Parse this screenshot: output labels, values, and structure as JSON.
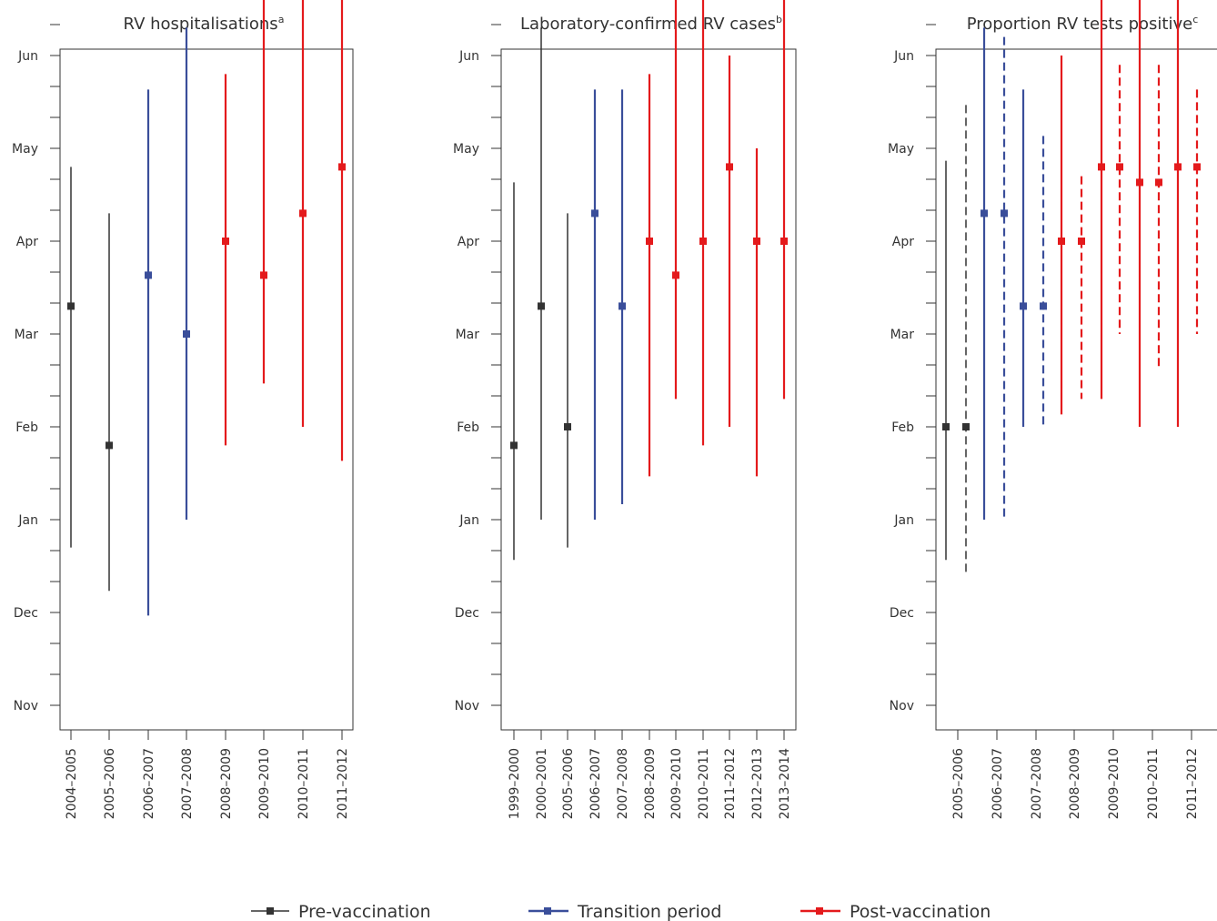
{
  "chart_data": [
    {
      "type": "range",
      "title": "RV hospitalisations",
      "title_superscript": "a",
      "y_tick_labels": [
        "Jun",
        "May",
        "Apr",
        "Mar",
        "Feb",
        "Jan",
        "Dec",
        "Nov"
      ],
      "x_categories": [
        "2004–2005",
        "2005–2006",
        "2006–2007",
        "2007–2008",
        "2008–2009",
        "2009–2010",
        "2010–2011",
        "2011–2012"
      ],
      "series": [
        {
          "category": "2004–2005",
          "period": "pre",
          "style": "solid",
          "peak": "Mar 10",
          "low": "Dec 22",
          "high": "Apr 25"
        },
        {
          "category": "2005–2006",
          "period": "pre",
          "style": "solid",
          "peak": "Jan 25",
          "low": "Dec 8",
          "high": "Apr 10"
        },
        {
          "category": "2006–2007",
          "period": "transition",
          "style": "solid",
          "peak": "Mar 20",
          "low": "Nov 30",
          "high": "May 20"
        },
        {
          "category": "2007–2008",
          "period": "transition",
          "style": "solid",
          "peak": "Mar 1",
          "low": "Jan 1",
          "high": "Jun 10"
        },
        {
          "category": "2008–2009",
          "period": "post",
          "style": "solid",
          "peak": "Apr 1",
          "low": "Jan 25",
          "high": "May 25"
        },
        {
          "category": "2009–2010",
          "period": "post",
          "style": "solid",
          "peak": "Mar 20",
          "low": "Feb 15",
          "high": "Jun 20"
        },
        {
          "category": "2010–2011",
          "period": "post",
          "style": "solid",
          "peak": "Apr 10",
          "low": "Feb 1",
          "high": "Jul 1"
        },
        {
          "category": "2011–2012",
          "period": "post",
          "style": "solid",
          "peak": "Apr 25",
          "low": "Jan 20",
          "high": "Jun 20"
        }
      ]
    },
    {
      "type": "range",
      "title": "Laboratory-confirmed RV cases",
      "title_superscript": "b",
      "y_tick_labels": [
        "Jun",
        "May",
        "Apr",
        "Mar",
        "Feb",
        "Jan",
        "Dec",
        "Nov"
      ],
      "x_categories": [
        "1999–2000",
        "2000–2001",
        "2005–2006",
        "2006–2007",
        "2007–2008",
        "2008–2009",
        "2009–2010",
        "2010–2011",
        "2011–2012",
        "2012–2013",
        "2013–2014"
      ],
      "series": [
        {
          "category": "1999–2000",
          "period": "pre",
          "style": "solid",
          "peak": "Jan 25",
          "low": "Dec 18",
          "high": "Apr 20"
        },
        {
          "category": "2000–2001",
          "period": "pre",
          "style": "solid",
          "peak": "Mar 10",
          "low": "Jan 1",
          "high": "Jun 10"
        },
        {
          "category": "2005–2006",
          "period": "pre",
          "style": "solid",
          "peak": "Feb 1",
          "low": "Dec 22",
          "high": "Apr 10"
        },
        {
          "category": "2006–2007",
          "period": "transition",
          "style": "solid",
          "peak": "Apr 10",
          "low": "Jan 1",
          "high": "May 20"
        },
        {
          "category": "2007–2008",
          "period": "transition",
          "style": "solid",
          "peak": "Mar 10",
          "low": "Jan 6",
          "high": "May 20"
        },
        {
          "category": "2008–2009",
          "period": "post",
          "style": "solid",
          "peak": "Apr 1",
          "low": "Jan 15",
          "high": "May 25"
        },
        {
          "category": "2009–2010",
          "period": "post",
          "style": "solid",
          "peak": "Mar 20",
          "low": "Feb 10",
          "high": "Jul 1"
        },
        {
          "category": "2010–2011",
          "period": "post",
          "style": "solid",
          "peak": "Apr 1",
          "low": "Jan 25",
          "high": "Jun 20"
        },
        {
          "category": "2011–2012",
          "period": "post",
          "style": "solid",
          "peak": "Apr 25",
          "low": "Feb 1",
          "high": "Jun 1"
        },
        {
          "category": "2012–2013",
          "period": "post",
          "style": "solid",
          "peak": "Apr 1",
          "low": "Jan 15",
          "high": "May 1"
        },
        {
          "category": "2013–2014",
          "period": "post",
          "style": "solid",
          "peak": "Apr 1",
          "low": "Feb 10",
          "high": "Jul 10"
        }
      ]
    },
    {
      "type": "range",
      "title": "Proportion RV tests positive",
      "title_superscript": "c",
      "y_tick_labels": [
        "Jun",
        "May",
        "Apr",
        "Mar",
        "Feb",
        "Jan",
        "Dec",
        "Nov"
      ],
      "x_categories": [
        "2005–2006",
        "2006–2007",
        "2007–2008",
        "2008–2009",
        "2009–2010",
        "2010–2011",
        "2011–2012"
      ],
      "series": [
        {
          "category": "2005–2006",
          "period": "pre",
          "style": "solid",
          "peak": "Feb 1",
          "low": "Dec 18",
          "high": "Apr 27"
        },
        {
          "category": "2005–2006",
          "period": "pre",
          "style": "dashed",
          "peak": "Feb 1",
          "low": "Dec 13",
          "high": "May 15"
        },
        {
          "category": "2006–2007",
          "period": "transition",
          "style": "solid",
          "peak": "Apr 10",
          "low": "Jan 1",
          "high": "Jun 10"
        },
        {
          "category": "2006–2007",
          "period": "transition",
          "style": "dashed",
          "peak": "Apr 10",
          "low": "Jan 1",
          "high": "Jun 7"
        },
        {
          "category": "2007–2008",
          "period": "transition",
          "style": "solid",
          "peak": "Mar 10",
          "low": "Feb 1",
          "high": "May 20"
        },
        {
          "category": "2007–2008",
          "period": "transition",
          "style": "dashed",
          "peak": "Mar 10",
          "low": "Feb 1",
          "high": "May 5"
        },
        {
          "category": "2008–2009",
          "period": "post",
          "style": "solid",
          "peak": "Apr 1",
          "low": "Feb 5",
          "high": "Jun 1"
        },
        {
          "category": "2008–2009",
          "period": "post",
          "style": "dashed",
          "peak": "Apr 1",
          "low": "Feb 10",
          "high": "Apr 22"
        },
        {
          "category": "2009–2010",
          "period": "post",
          "style": "solid",
          "peak": "Apr 25",
          "low": "Feb 10",
          "high": "Jul 10"
        },
        {
          "category": "2009–2010",
          "period": "post",
          "style": "dashed",
          "peak": "Apr 25",
          "low": "Mar 1",
          "high": "May 28"
        },
        {
          "category": "2010–2011",
          "period": "post",
          "style": "solid",
          "peak": "Apr 20",
          "low": "Feb 1",
          "high": "Jun 20"
        },
        {
          "category": "2010–2011",
          "period": "post",
          "style": "dashed",
          "peak": "Apr 20",
          "low": "Feb 20",
          "high": "May 28"
        },
        {
          "category": "2011–2012",
          "period": "post",
          "style": "solid",
          "peak": "Apr 25",
          "low": "Feb 1",
          "high": "Jul 1"
        },
        {
          "category": "2011–2012",
          "period": "post",
          "style": "dashed",
          "peak": "Apr 25",
          "low": "Mar 1",
          "high": "May 20"
        }
      ]
    }
  ],
  "legend": {
    "placement": "bottom",
    "items": [
      {
        "key": "pre",
        "label": "Pre-vaccination",
        "color": "#333333"
      },
      {
        "key": "transition",
        "label": "Transition period",
        "color": "#3a4e9a"
      },
      {
        "key": "post",
        "label": "Post-vaccination",
        "color": "#e41a1c"
      }
    ]
  }
}
